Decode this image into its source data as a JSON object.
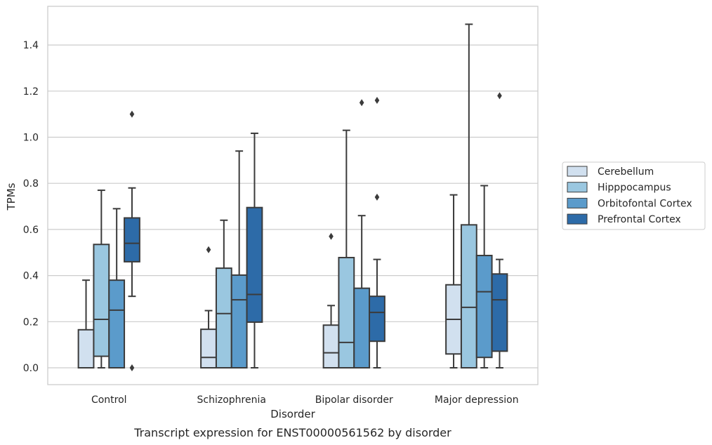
{
  "caption": "Transcript expression for ENST00000561562 by disorder",
  "chart_data": {
    "type": "box",
    "title": "",
    "xlabel": "Disorder",
    "ylabel": "TPMs",
    "ylim": [
      -0.07,
      1.565
    ],
    "yticks": [
      0.0,
      0.2,
      0.4,
      0.6,
      0.8,
      1.0,
      1.2,
      1.4
    ],
    "ytick_labels": [
      "0.0",
      "0.2",
      "0.4",
      "0.6",
      "0.8",
      "1.0",
      "1.2",
      "1.4"
    ],
    "grid": "horizontal",
    "legend_position": "right",
    "categories": [
      "Control",
      "Schizophrenia",
      "Bipolar disorder",
      "Major depression"
    ],
    "series": [
      {
        "name": "Cerebellum",
        "color": "#d1e0ef",
        "boxes": [
          {
            "whislo": 0.0,
            "q1": 0.0,
            "med": 0.0,
            "q3": 0.165,
            "whishi": 0.38,
            "fliers": []
          },
          {
            "whislo": 0.0,
            "q1": 0.0,
            "med": 0.045,
            "q3": 0.167,
            "whishi": 0.248,
            "fliers": [
              0.512
            ]
          },
          {
            "whislo": 0.0,
            "q1": 0.0,
            "med": 0.065,
            "q3": 0.185,
            "whishi": 0.27,
            "fliers": [
              0.57
            ]
          },
          {
            "whislo": 0.0,
            "q1": 0.06,
            "med": 0.21,
            "q3": 0.36,
            "whishi": 0.75,
            "fliers": []
          }
        ]
      },
      {
        "name": "Hipppocampus",
        "color": "#9ac7e0",
        "boxes": [
          {
            "whislo": 0.0,
            "q1": 0.05,
            "med": 0.21,
            "q3": 0.535,
            "whishi": 0.77,
            "fliers": []
          },
          {
            "whislo": 0.0,
            "q1": 0.0,
            "med": 0.235,
            "q3": 0.432,
            "whishi": 0.64,
            "fliers": []
          },
          {
            "whislo": 0.0,
            "q1": 0.0,
            "med": 0.11,
            "q3": 0.478,
            "whishi": 1.03,
            "fliers": []
          },
          {
            "whislo": 0.0,
            "q1": 0.0,
            "med": 0.262,
            "q3": 0.62,
            "whishi": 1.49,
            "fliers": []
          }
        ]
      },
      {
        "name": "Orbitofontal Cortex",
        "color": "#5b9bcb",
        "boxes": [
          {
            "whislo": 0.0,
            "q1": 0.0,
            "med": 0.25,
            "q3": 0.38,
            "whishi": 0.69,
            "fliers": []
          },
          {
            "whislo": 0.0,
            "q1": 0.0,
            "med": 0.295,
            "q3": 0.402,
            "whishi": 0.94,
            "fliers": []
          },
          {
            "whislo": 0.0,
            "q1": 0.0,
            "med": 0.0,
            "q3": 0.345,
            "whishi": 0.66,
            "fliers": [
              1.15
            ]
          },
          {
            "whislo": 0.0,
            "q1": 0.045,
            "med": 0.33,
            "q3": 0.487,
            "whishi": 0.79,
            "fliers": []
          }
        ]
      },
      {
        "name": "Prefrontal Cortex",
        "color": "#2d6ba8",
        "boxes": [
          {
            "whislo": 0.31,
            "q1": 0.46,
            "med": 0.54,
            "q3": 0.65,
            "whishi": 0.78,
            "fliers": [
              1.1,
              0.0
            ]
          },
          {
            "whislo": 0.0,
            "q1": 0.198,
            "med": 0.318,
            "q3": 0.695,
            "whishi": 1.017,
            "fliers": []
          },
          {
            "whislo": 0.0,
            "q1": 0.115,
            "med": 0.24,
            "q3": 0.31,
            "whishi": 0.47,
            "fliers": [
              1.16,
              0.74
            ]
          },
          {
            "whislo": 0.0,
            "q1": 0.072,
            "med": 0.295,
            "q3": 0.407,
            "whishi": 0.47,
            "fliers": [
              1.18
            ]
          }
        ]
      }
    ]
  }
}
